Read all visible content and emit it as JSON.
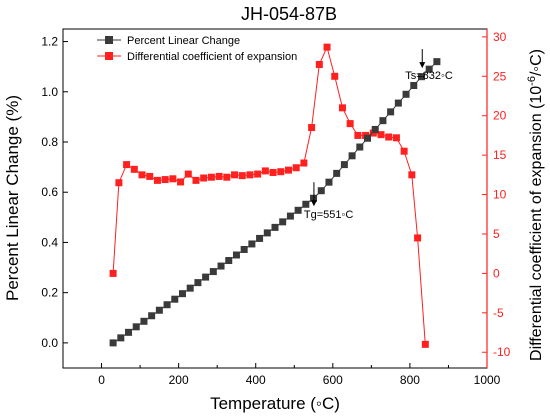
{
  "chart_data": {
    "type": "scatter",
    "title": "JH-054-87B",
    "xlabel": "Temperature (◦C)",
    "ylabel_left": "Percent Linear Change (%)",
    "ylabel_right_prefix": "Differential coefficient of expansion (10",
    "ylabel_right_exp": "-6",
    "ylabel_right_suffix": "/◦C)",
    "xlim": [
      -100,
      1000
    ],
    "ylim_left": [
      -0.1,
      1.25
    ],
    "ylim_right": [
      -12,
      31
    ],
    "x_ticks": [
      0,
      200,
      400,
      600,
      800,
      1000
    ],
    "y_ticks_left": [
      0.0,
      0.2,
      0.4,
      0.6,
      0.8,
      1.0,
      1.2
    ],
    "y_ticks_right": [
      -10,
      -5,
      0,
      5,
      10,
      15,
      20,
      25,
      30
    ],
    "legend_position": "top-left",
    "colors": {
      "left_axis": "#000000",
      "right_axis": "#ff2020",
      "series1": "#3a3a3a",
      "series2": "#ff2020"
    },
    "series": [
      {
        "name": "Percent Linear Change",
        "axis": "left",
        "x": [
          30,
          50,
          70,
          90,
          110,
          130,
          150,
          170,
          190,
          210,
          230,
          250,
          270,
          290,
          310,
          330,
          350,
          370,
          390,
          410,
          430,
          450,
          470,
          490,
          510,
          530,
          550,
          570,
          590,
          610,
          630,
          650,
          670,
          690,
          710,
          730,
          750,
          770,
          790,
          810,
          830,
          850,
          870
        ],
        "y": [
          0.0,
          0.02,
          0.042,
          0.064,
          0.086,
          0.108,
          0.13,
          0.152,
          0.174,
          0.196,
          0.218,
          0.24,
          0.262,
          0.284,
          0.306,
          0.328,
          0.35,
          0.372,
          0.394,
          0.416,
          0.438,
          0.46,
          0.482,
          0.505,
          0.528,
          0.552,
          0.576,
          0.606,
          0.64,
          0.675,
          0.71,
          0.745,
          0.78,
          0.815,
          0.85,
          0.885,
          0.92,
          0.955,
          0.99,
          1.025,
          1.06,
          1.09,
          1.12
        ]
      },
      {
        "name": "Differential coefficient of expansion",
        "axis": "right",
        "x": [
          30,
          45,
          65,
          85,
          105,
          125,
          145,
          165,
          185,
          205,
          225,
          245,
          265,
          285,
          305,
          325,
          345,
          365,
          385,
          405,
          425,
          445,
          465,
          485,
          505,
          525,
          545,
          565,
          585,
          605,
          625,
          645,
          665,
          685,
          705,
          725,
          745,
          765,
          785,
          805,
          820,
          840
        ],
        "y": [
          0.0,
          11.5,
          13.8,
          13.2,
          12.5,
          12.3,
          11.8,
          11.9,
          12.0,
          11.6,
          12.6,
          11.8,
          12.1,
          12.2,
          12.3,
          12.2,
          12.5,
          12.4,
          12.5,
          12.6,
          13.0,
          12.8,
          12.9,
          13.1,
          13.4,
          14.0,
          18.5,
          26.5,
          28.7,
          25.0,
          21.0,
          19.0,
          17.5,
          17.5,
          17.8,
          17.6,
          17.3,
          17.2,
          15.5,
          12.5,
          4.5,
          -9.0
        ]
      }
    ],
    "annotations": [
      {
        "text": "Ts=832◦C",
        "x": 832,
        "y_left": 1.17
      },
      {
        "text": "Tg=551◦C",
        "x": 551,
        "y_left": 0.6
      }
    ]
  }
}
